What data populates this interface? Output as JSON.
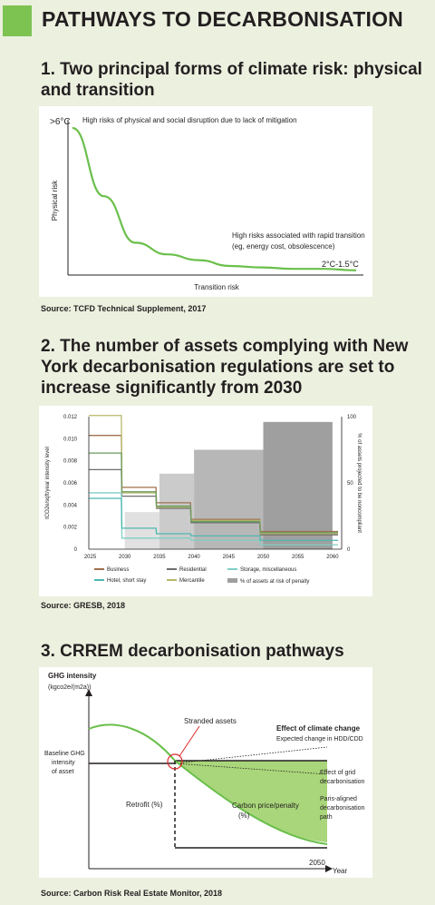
{
  "title": "PATHWAYS TO DECARBONISATION",
  "colors": {
    "accent": "#7cc352",
    "background": "#ecf0df"
  },
  "sections": [
    {
      "number_title": "1. Two principal forms of climate risk: physical and transition",
      "source": "Source: TCFD Technical Supplement, 2017"
    },
    {
      "number_title": "2. The number of assets complying with New York decarbonisation regulations are set to increase significantly from 2030",
      "source": "Source: GRESB, 2018"
    },
    {
      "number_title": "3. CRREM decarbonisation pathways",
      "source": "Source: Carbon Risk Real Estate Monitor, 2018"
    }
  ],
  "chart_data": [
    {
      "type": "line",
      "ylabel": "Physical risk",
      "xlabel": "Transition risk",
      "y_top_label": ">6°C",
      "end_label": "2°C-1.5°C",
      "annotations": [
        "High risks of physical and social disruption due to lack of mitigation",
        "High risks associated with rapid transition",
        "(eg, energy cost, obsolescence)"
      ],
      "series": [
        {
          "values": [
            1.0,
            0.53,
            0.21,
            0.13,
            0.09,
            0.05,
            0.04,
            0.03,
            0.03,
            0.02
          ]
        }
      ]
    },
    {
      "type": "area",
      "ylabel": "tCO2e/sqft/year intensity level",
      "ylabel_right": "% of assets projected to be noncompliant",
      "x_ticks": [
        "2025",
        "2030",
        "2035",
        "2040",
        "2045",
        "2050",
        "2055",
        "2060"
      ],
      "y_ticks": [
        "0",
        "0.002",
        "0.004",
        "0.006",
        "0.008",
        "0.010",
        "0.012"
      ],
      "y_ticks_right": [
        "0",
        "50",
        "100"
      ],
      "ylim": [
        0,
        0.012
      ],
      "ylim_right": [
        0,
        100
      ],
      "penalty_bars": {
        "name": "% of assets at risk of penalty",
        "periods": [
          [
            2030,
            2035
          ],
          [
            2035,
            2040
          ],
          [
            2040,
            2050
          ],
          [
            2050,
            2060
          ]
        ],
        "values": [
          28,
          57,
          75,
          96
        ]
      },
      "breakpoints": [
        2029.5,
        2034.5,
        2039.5,
        2049.5
      ],
      "x_start": 2024.8,
      "x_end": 2060.8,
      "series": [
        {
          "name": "Business",
          "color": "#a0704f",
          "values": [
            0.0103,
            0.0056,
            0.0042,
            0.0027,
            0.0016
          ]
        },
        {
          "name": "Residential",
          "color": "#6d6e71",
          "values": [
            0.0072,
            0.0048,
            0.0037,
            0.0024,
            0.0013
          ]
        },
        {
          "name": "Storage, miscellaneous",
          "color": "#7fcfc6",
          "values": [
            0.0051,
            0.001,
            0.001,
            0.0008,
            0.0004
          ]
        },
        {
          "name": "Hotel, short stay",
          "color": "#4cb8b1",
          "values": [
            0.0046,
            0.0019,
            0.0014,
            0.0012,
            0.0008
          ]
        },
        {
          "name": "Mercantile",
          "color": "#b8b86a",
          "values": [
            0.0121,
            0.0051,
            0.0038,
            0.0026,
            0.0014
          ]
        },
        {
          "name": "Business",
          "color": "#6a9b5e",
          "values": [
            0.0087,
            0.0052,
            0.0039,
            0.0025,
            0.0015
          ]
        }
      ]
    },
    {
      "type": "line",
      "ylabel": "GHG intensity",
      "ylabel_unit": "(kgco2e/(m2a))",
      "xlabel": "Year",
      "x_end_label": "2050",
      "baseline_label": [
        "Baseline GHG",
        "intensity",
        "of asset"
      ],
      "labels": {
        "stranded": "Stranded assets",
        "climate_change": "Effect of climate change",
        "hdd": "Expected change in HDD/CDD",
        "grid": [
          "Effect of grid",
          "decarbonisation"
        ],
        "paris": [
          "Paris-aligned",
          "decarbonisation",
          "path"
        ],
        "retrofit": "Retrofit (%)",
        "carbon_price": [
          "Carbon price/penalty",
          "(%)"
        ]
      }
    }
  ]
}
